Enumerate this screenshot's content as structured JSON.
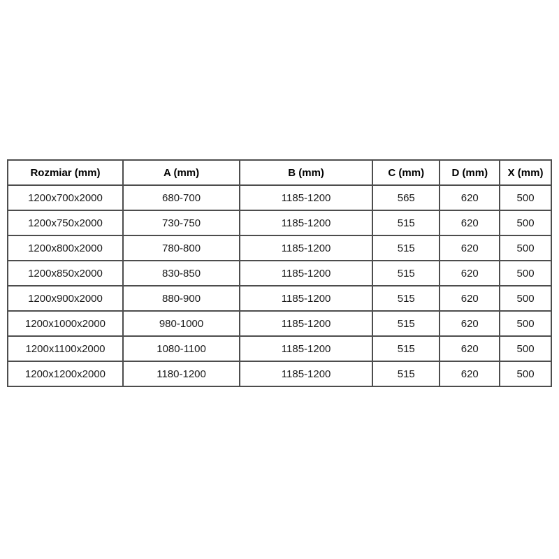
{
  "page": {
    "background_color": "#ffffff",
    "border_color": "#4d4d4d",
    "text_color": "#1a1a1a"
  },
  "table": {
    "columns": [
      {
        "label": "Rozmiar (mm)"
      },
      {
        "label": "A (mm)"
      },
      {
        "label": "B (mm)"
      },
      {
        "label": "C (mm)"
      },
      {
        "label": "D (mm)"
      },
      {
        "label": "X (mm)"
      }
    ],
    "rows": [
      [
        "1200x700x2000",
        "680-700",
        "1185-1200",
        "565",
        "620",
        "500"
      ],
      [
        "1200x750x2000",
        "730-750",
        "1185-1200",
        "515",
        "620",
        "500"
      ],
      [
        "1200x800x2000",
        "780-800",
        "1185-1200",
        "515",
        "620",
        "500"
      ],
      [
        "1200x850x2000",
        "830-850",
        "1185-1200",
        "515",
        "620",
        "500"
      ],
      [
        "1200x900x2000",
        "880-900",
        "1185-1200",
        "515",
        "620",
        "500"
      ],
      [
        "1200x1000x2000",
        "980-1000",
        "1185-1200",
        "515",
        "620",
        "500"
      ],
      [
        "1200x1100x2000",
        "1080-1100",
        "1185-1200",
        "515",
        "620",
        "500"
      ],
      [
        "1200x1200x2000",
        "1180-1200",
        "1185-1200",
        "515",
        "620",
        "500"
      ]
    ]
  }
}
